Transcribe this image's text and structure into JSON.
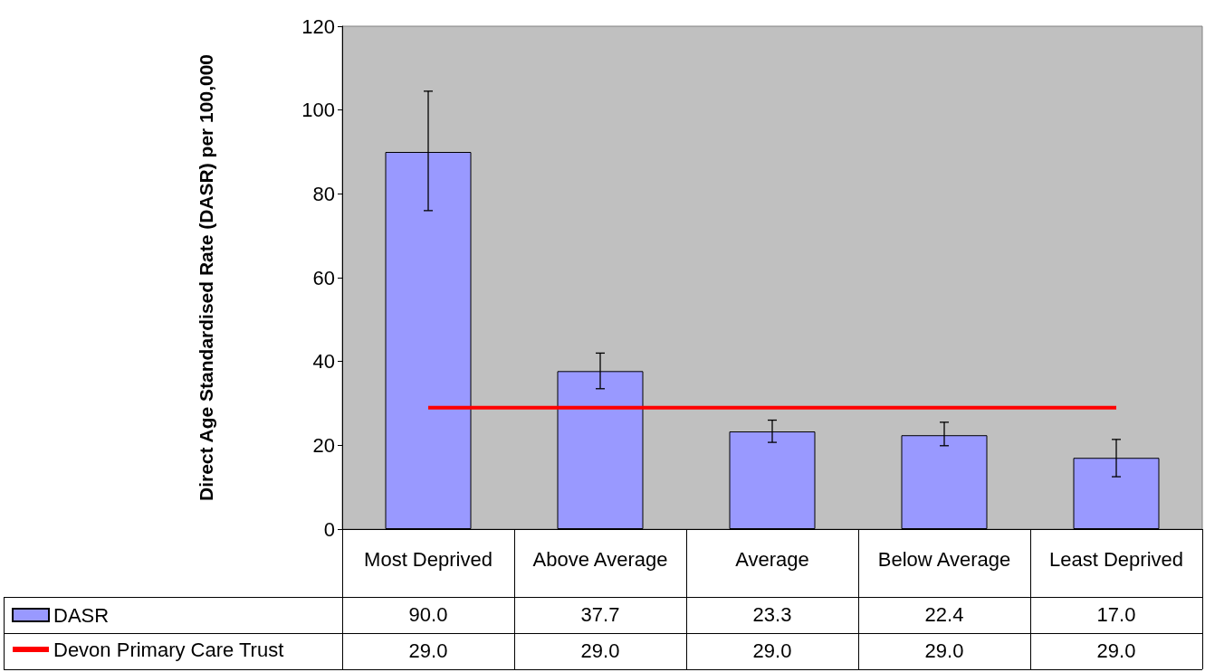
{
  "chart_data": {
    "type": "bar",
    "ylabel": "Direct Age Standardised Rate (DASR) per 100,000",
    "categories": [
      "Most Deprived",
      "Above Average",
      "Average",
      "Below Average",
      "Least Deprived"
    ],
    "series": [
      {
        "name": "DASR",
        "color": "#9999ff",
        "values": [
          90.0,
          37.7,
          23.3,
          22.4,
          17.0
        ],
        "value_labels": [
          "90.0",
          "37.7",
          "23.3",
          "22.4",
          "17.0"
        ],
        "errors": [
          [
            76,
            104.5
          ],
          [
            33.5,
            42
          ],
          [
            20.7,
            26
          ],
          [
            19.9,
            25.5
          ],
          [
            12.5,
            21.4
          ]
        ]
      },
      {
        "name": "Devon Primary Care Trust",
        "type": "line",
        "color": "#ff0000",
        "marker": "none",
        "values": [
          29.0,
          29.0,
          29.0,
          29.0,
          29.0
        ],
        "value_labels": [
          "29.0",
          "29.0",
          "29.0",
          "29.0",
          "29.0"
        ]
      }
    ],
    "ylim": [
      0,
      120
    ],
    "yticks": [
      0,
      20,
      40,
      60,
      80,
      100,
      120
    ],
    "grid": false,
    "legend": "bottom left"
  }
}
